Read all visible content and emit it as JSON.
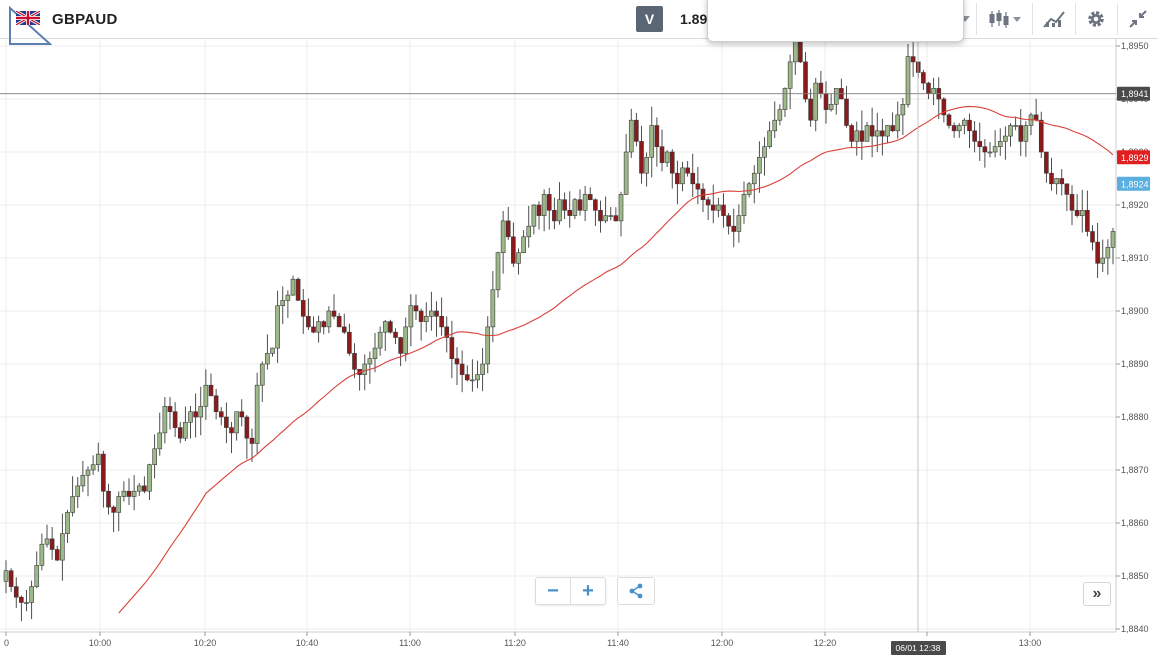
{
  "header": {
    "symbol": "GBPAUD",
    "v_button": "V",
    "price_partial": "1.89"
  },
  "controls": {
    "zoom_out": "−",
    "zoom_in": "+",
    "scroll_right": "»"
  },
  "icons": {
    "flag": "uk-flag-icon",
    "chart_type": "candlestick-icon",
    "indicators": "indicators-icon",
    "settings": "gear-icon",
    "fullscreen": "collapse-icon",
    "share": "share-icon"
  },
  "colors": {
    "up_candle": "#9db889",
    "down_candle": "#8b1a1a",
    "ma_line": "#d9403a",
    "current_price_tag": "#e02020",
    "ma_tag": "#5aaee0",
    "crosshair_tag": "#4a4a4a"
  },
  "chart_data": {
    "type": "candlestick",
    "symbol": "GBPAUD",
    "x_tick_labels": [
      "0",
      "10:00",
      "10:20",
      "10:40",
      "11:00",
      "11:20",
      "11:40",
      "12:00",
      "12:20",
      "12:40",
      "13:00"
    ],
    "y_tick_labels": [
      "1,8950",
      "1,8940",
      "1,8930",
      "1,8920",
      "1,8910",
      "1,8900",
      "1,8890",
      "1,8880",
      "1,8870",
      "1,8860",
      "1,8850",
      "1,8840"
    ],
    "ylim": [
      1.884,
      1.8952
    ],
    "crosshair": {
      "price_label": "1,8941",
      "time_label": "06/01 12:38",
      "price": 1.8941
    },
    "tags": {
      "current_price": "1,8929",
      "current_value": 1.8929,
      "ma_price": "1,8924",
      "ma_value": 1.8924
    },
    "grid": true,
    "closes": [
      1.8851,
      1.8848,
      1.8846,
      1.8845,
      1.8845,
      1.8848,
      1.8852,
      1.8856,
      1.8857,
      1.8855,
      1.8853,
      1.8858,
      1.8862,
      1.8865,
      1.8867,
      1.8869,
      1.887,
      1.8871,
      1.8873,
      1.8866,
      1.8863,
      1.8862,
      1.8865,
      1.8866,
      1.8865,
      1.8866,
      1.8867,
      1.8866,
      1.8871,
      1.8874,
      1.8877,
      1.8882,
      1.8881,
      1.8878,
      1.8876,
      1.8879,
      1.8881,
      1.888,
      1.8882,
      1.8886,
      1.8884,
      1.8881,
      1.888,
      1.8878,
      1.8877,
      1.8881,
      1.888,
      1.8876,
      1.8875,
      1.8886,
      1.889,
      1.8892,
      1.8893,
      1.8901,
      1.8902,
      1.8903,
      1.8906,
      1.8902,
      1.8899,
      1.8897,
      1.8896,
      1.8898,
      1.8897,
      1.89,
      1.8899,
      1.8897,
      1.8896,
      1.8892,
      1.8889,
      1.8888,
      1.889,
      1.8891,
      1.8893,
      1.8896,
      1.8898,
      1.8896,
      1.8895,
      1.8892,
      1.8897,
      1.8901,
      1.89,
      1.8898,
      1.8899,
      1.89,
      1.8899,
      1.8897,
      1.8895,
      1.8891,
      1.889,
      1.8888,
      1.8887,
      1.8887,
      1.8888,
      1.889,
      1.8897,
      1.8904,
      1.8911,
      1.8917,
      1.8914,
      1.8909,
      1.8911,
      1.8914,
      1.8916,
      1.892,
      1.8918,
      1.8922,
      1.8919,
      1.8917,
      1.8921,
      1.8919,
      1.8918,
      1.8921,
      1.8919,
      1.8922,
      1.8921,
      1.8919,
      1.8917,
      1.8918,
      1.8918,
      1.8917,
      1.8922,
      1.893,
      1.8936,
      1.8932,
      1.8926,
      1.8929,
      1.8935,
      1.8931,
      1.8928,
      1.893,
      1.8926,
      1.8924,
      1.8927,
      1.8926,
      1.8924,
      1.8923,
      1.8921,
      1.892,
      1.8919,
      1.892,
      1.8918,
      1.8916,
      1.8915,
      1.8918,
      1.8922,
      1.8924,
      1.8926,
      1.8929,
      1.8931,
      1.8934,
      1.8936,
      1.8938,
      1.8942,
      1.8947,
      1.8951,
      1.8947,
      1.894,
      1.8936,
      1.8943,
      1.8941,
      1.8938,
      1.8939,
      1.8942,
      1.894,
      1.8935,
      1.8932,
      1.8934,
      1.8932,
      1.8935,
      1.8933,
      1.8934,
      1.8933,
      1.8935,
      1.8934,
      1.8937,
      1.8939,
      1.8948,
      1.8947,
      1.8945,
      1.8943,
      1.8941,
      1.8942,
      1.894,
      1.8937,
      1.8935,
      1.8934,
      1.8935,
      1.8936,
      1.8934,
      1.8932,
      1.8931,
      1.893,
      1.893,
      1.8931,
      1.8932,
      1.8933,
      1.8935,
      1.8935,
      1.8932,
      1.8935,
      1.8937,
      1.8936,
      1.893,
      1.8926,
      1.8924,
      1.8925,
      1.8924,
      1.8922,
      1.8919,
      1.8918,
      1.8919,
      1.8915,
      1.8913,
      1.8909,
      1.891,
      1.8912,
      1.8915
    ]
  }
}
